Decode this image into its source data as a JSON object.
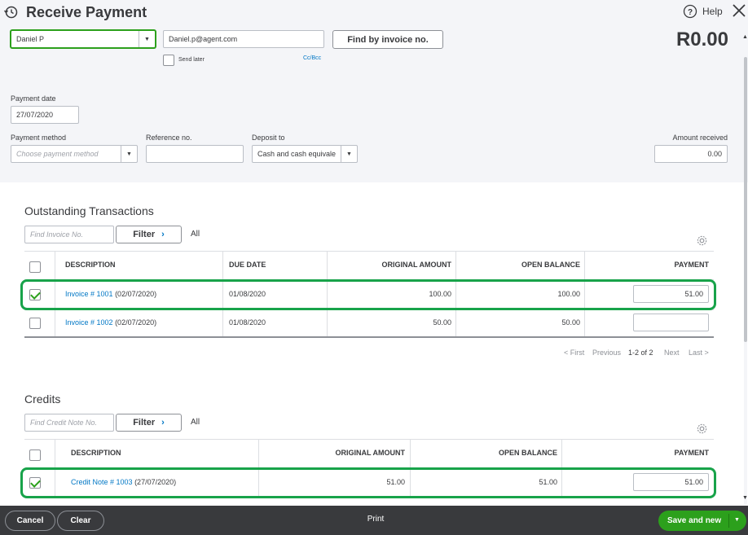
{
  "header": {
    "title": "Receive Payment",
    "help_label": "Help",
    "amount_display": "R0.00"
  },
  "customer": {
    "name": "Daniel P",
    "email": "Daniel.p@agent.com",
    "send_later_label": "Send later",
    "cc_bcc_label": "Cc/Bcc",
    "find_invoice_label": "Find by invoice no."
  },
  "payment_date": {
    "label": "Payment date",
    "value": "27/07/2020"
  },
  "payment_method": {
    "label": "Payment method",
    "placeholder": "Choose payment method"
  },
  "reference": {
    "label": "Reference no.",
    "value": ""
  },
  "deposit_to": {
    "label": "Deposit to",
    "value": "Cash and cash equivale"
  },
  "amount_received": {
    "label": "Amount received",
    "value": "0.00"
  },
  "outstanding": {
    "title": "Outstanding Transactions",
    "search_placeholder": "Find Invoice No.",
    "filter_label": "Filter",
    "all_label": "All",
    "columns": {
      "description": "DESCRIPTION",
      "due_date": "DUE DATE",
      "original_amount": "ORIGINAL AMOUNT",
      "open_balance": "OPEN BALANCE",
      "payment": "PAYMENT"
    },
    "rows": [
      {
        "link": "Invoice # 1001",
        "date": "(02/07/2020)",
        "due_date": "01/08/2020",
        "original_amount": "100.00",
        "open_balance": "100.00",
        "payment": "51.00",
        "checked": true
      },
      {
        "link": "Invoice # 1002",
        "date": "(02/07/2020)",
        "due_date": "01/08/2020",
        "original_amount": "50.00",
        "open_balance": "50.00",
        "payment": "",
        "checked": false
      }
    ],
    "pager": {
      "first": "< First",
      "previous": "Previous",
      "range": "1-2 of 2",
      "next": "Next",
      "last": "Last >"
    }
  },
  "credits": {
    "title": "Credits",
    "search_placeholder": "Find Credit Note No.",
    "filter_label": "Filter",
    "all_label": "All",
    "columns": {
      "description": "DESCRIPTION",
      "original_amount": "ORIGINAL AMOUNT",
      "open_balance": "OPEN BALANCE",
      "payment": "PAYMENT"
    },
    "rows": [
      {
        "link": "Credit Note # 1003",
        "date": "(27/07/2020)",
        "original_amount": "51.00",
        "open_balance": "51.00",
        "payment": "51.00",
        "checked": true
      }
    ]
  },
  "footer": {
    "cancel_label": "Cancel",
    "clear_label": "Clear",
    "print_label": "Print",
    "save_label": "Save and new"
  },
  "colors": {
    "accent_green": "#2ca01c",
    "highlight_green": "#18a34a",
    "link_blue": "#0077c5",
    "footer_bg": "#393a3d"
  }
}
